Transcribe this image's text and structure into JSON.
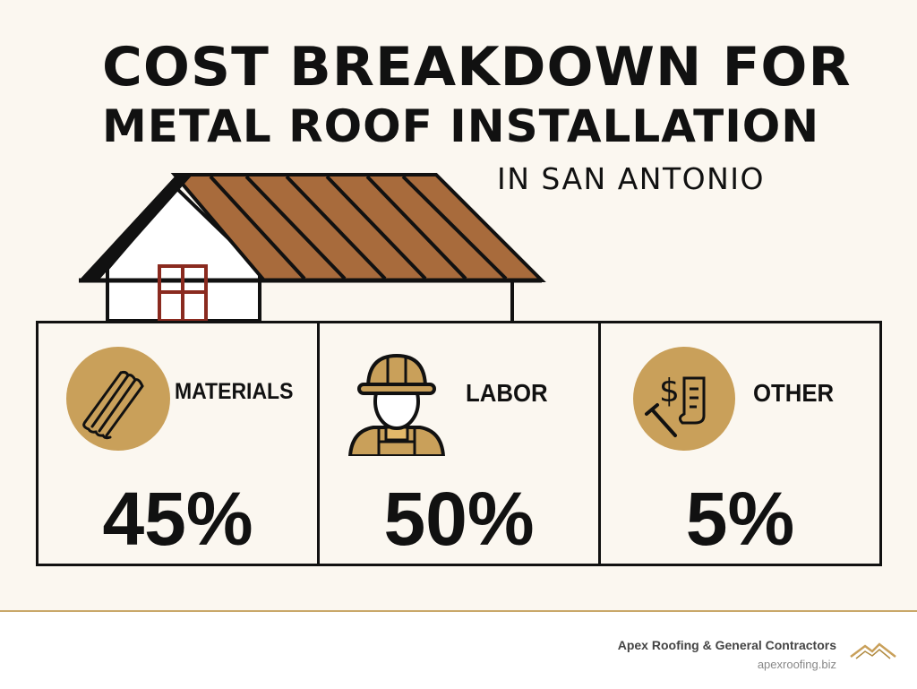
{
  "title": {
    "line1": "COST BREAKDOWN FOR",
    "line2": "METAL ROOF INSTALLATION",
    "line3": "IN SAN ANTONIO"
  },
  "colors": {
    "accent_gold": "#c9a05a",
    "roof_brown": "#a86b3c",
    "window_red": "#8a2a1f",
    "text": "#111111"
  },
  "categories": [
    {
      "label": "MATERIALS",
      "percent": "45%",
      "icon": "metal-panels-icon"
    },
    {
      "label": "LABOR",
      "percent": "50%",
      "icon": "construction-worker-icon"
    },
    {
      "label": "OTHER",
      "percent": "5%",
      "icon": "dollar-receipt-hammer-icon"
    }
  ],
  "footer": {
    "company": "Apex Roofing & General Contractors",
    "website": "apexroofing.biz",
    "logo": "mountain-roof-logo"
  }
}
